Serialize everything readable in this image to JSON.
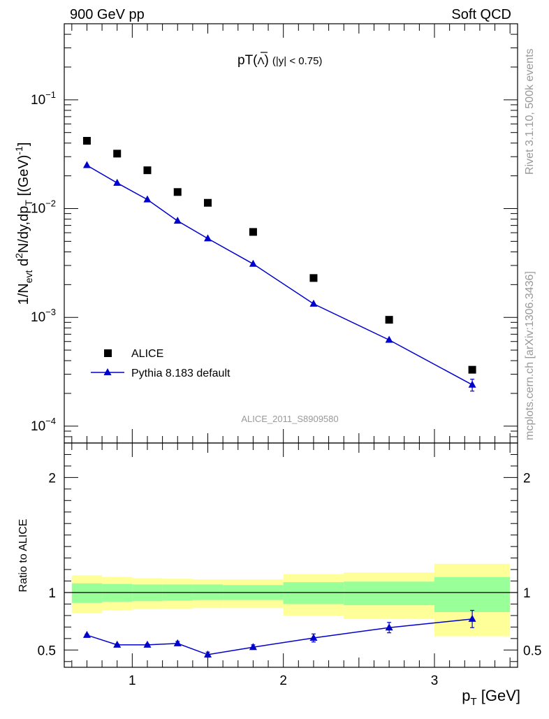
{
  "header": {
    "left": "900 GeV pp",
    "right": "Soft QCD"
  },
  "side": {
    "rivet": "Rivet 3.1.10,  500k events",
    "mcplots": "mcplots.cern.ch [arXiv:1306.3436]"
  },
  "chart_data": [
    {
      "type": "scatter",
      "panel": "main",
      "title": {
        "main": "pT(",
        "lambda": "Λ",
        "close": ")",
        "cut": "(|y| < 0.75)"
      },
      "analysis_tag": "ALICE_2011_S8909580",
      "ylabel": {
        "prefix": "1/N",
        "sub1": "evt",
        "mid1": " d",
        "sup1": "2",
        "mid2": "N/dy,dp",
        "sub2": "T",
        "mid3": " [(GeV)",
        "sup2": "-1",
        "close": "]"
      },
      "xlim": [
        0.55,
        3.55
      ],
      "ylim_log": [
        7e-05,
        0.5
      ],
      "yscale": "log",
      "y_ticks": [
        {
          "value": 0.1,
          "base": "10",
          "exp": "−1"
        },
        {
          "value": 0.01,
          "base": "10",
          "exp": "−2"
        },
        {
          "value": 0.001,
          "base": "10",
          "exp": "−3"
        },
        {
          "value": 0.0001,
          "base": "10",
          "exp": "−4"
        }
      ],
      "legend": {
        "position": "bottom-left",
        "entries": [
          "ALICE",
          "Pythia 8.183 default"
        ]
      },
      "series": [
        {
          "name": "ALICE",
          "marker": "square",
          "color": "#000000",
          "x": [
            0.7,
            0.9,
            1.1,
            1.3,
            1.5,
            1.8,
            2.2,
            2.7,
            3.25
          ],
          "y": [
            0.042,
            0.032,
            0.0225,
            0.0142,
            0.0113,
            0.0061,
            0.0023,
            0.00095,
            0.00033
          ]
        },
        {
          "name": "Pythia 8.183 default",
          "marker": "triangle",
          "color": "#0000cc",
          "x": [
            0.7,
            0.9,
            1.1,
            1.3,
            1.5,
            1.8,
            2.2,
            2.7,
            3.25
          ],
          "y": [
            0.025,
            0.0172,
            0.0121,
            0.0077,
            0.0053,
            0.0031,
            0.00133,
            0.00062,
            0.00024
          ],
          "err_high": [
            0,
            0,
            0,
            0,
            0,
            0,
            0,
            0,
            3e-05
          ],
          "err_low": [
            0,
            0,
            0,
            0,
            0,
            0,
            0,
            0,
            3e-05
          ]
        }
      ]
    },
    {
      "type": "line",
      "panel": "ratio",
      "ylabel": "Ratio to ALICE",
      "xlabel": {
        "main": "p",
        "sub": "T",
        "unit": " [GeV]"
      },
      "xlim": [
        0.55,
        3.55
      ],
      "ylim": [
        0.35,
        2.3
      ],
      "x_ticks": [
        "1",
        "2",
        "3"
      ],
      "x_tick_values": [
        1,
        2,
        3
      ],
      "y_ticks": [
        "0.5",
        "1",
        "2"
      ],
      "y_tick_values": [
        0.5,
        1,
        2
      ],
      "reference_line": 1,
      "bands": {
        "edges": [
          0.6,
          0.8,
          1.0,
          1.2,
          1.4,
          1.6,
          2.0,
          2.4,
          3.0,
          3.5
        ],
        "yellow_low": [
          0.82,
          0.845,
          0.855,
          0.86,
          0.865,
          0.865,
          0.8,
          0.77,
          0.62
        ],
        "yellow_high": [
          1.15,
          1.135,
          1.125,
          1.12,
          1.115,
          1.115,
          1.16,
          1.175,
          1.25
        ],
        "green_low": [
          0.91,
          0.92,
          0.925,
          0.93,
          0.935,
          0.935,
          0.9,
          0.89,
          0.83
        ],
        "green_high": [
          1.08,
          1.075,
          1.07,
          1.07,
          1.07,
          1.065,
          1.09,
          1.095,
          1.135
        ],
        "yellow_color": "#ffff99",
        "green_color": "#99ff99"
      },
      "series": [
        {
          "name": "Pythia 8.183 default",
          "color": "#0000cc",
          "x": [
            0.7,
            0.9,
            1.1,
            1.3,
            1.5,
            1.8,
            2.2,
            2.7,
            3.25
          ],
          "y": [
            0.63,
            0.545,
            0.545,
            0.557,
            0.46,
            0.525,
            0.605,
            0.695,
            0.77
          ],
          "err": [
            0.008,
            0.008,
            0.008,
            0.018,
            0.022,
            0.02,
            0.035,
            0.045,
            0.075
          ]
        }
      ]
    }
  ]
}
